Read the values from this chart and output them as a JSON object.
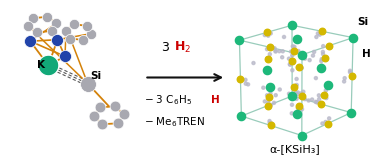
{
  "bg_color": "#ffffff",
  "crystal_label": "α-[KSiH₃]",
  "label_Si": "Si",
  "label_K": "K",
  "label_H": "H",
  "color_K": "#1db87a",
  "color_Si": "#d4b800",
  "color_H": "#b8b8c8",
  "color_orange": "#d4820a",
  "color_blue": "#2244aa",
  "color_teal": "#10a070",
  "color_gray_atom": "#a8a8b0",
  "color_cube_edge": "#99ccbb",
  "arrow_color": "#111111",
  "text_red": "#cc0000"
}
